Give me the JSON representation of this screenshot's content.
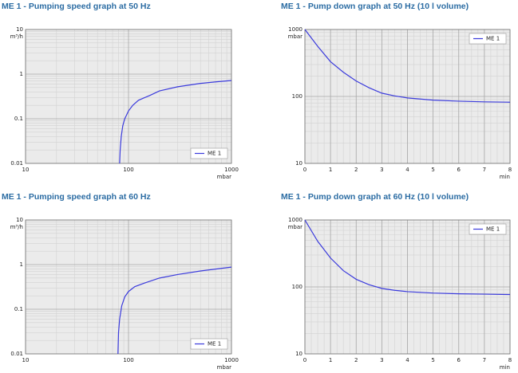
{
  "chart_data": [
    {
      "type": "line",
      "title": "ME 1 - Pumping speed graph at 50 Hz",
      "ylabel": "m³/h",
      "xlabel": "mbar",
      "xlog": true,
      "ylog": true,
      "xlim": [
        10,
        1000
      ],
      "ylim": [
        0.01,
        10
      ],
      "xticks": [
        10,
        100,
        1000
      ],
      "yticks": [
        0.01,
        0.1,
        1,
        10
      ],
      "grid": true,
      "legend": "lower right",
      "x": [
        82,
        83,
        85,
        88,
        92,
        100,
        110,
        125,
        140,
        160,
        200,
        300,
        500,
        700,
        1000
      ],
      "series": [
        {
          "name": "ME 1",
          "color": "#3b3bdc",
          "values": [
            0.01,
            0.02,
            0.04,
            0.07,
            0.1,
            0.15,
            0.2,
            0.26,
            0.29,
            0.33,
            0.42,
            0.52,
            0.62,
            0.67,
            0.72
          ]
        }
      ]
    },
    {
      "type": "line",
      "title": "ME 1 - Pump down graph at 50 Hz (10 l volume)",
      "ylabel": "mbar",
      "xlabel": "min",
      "xlog": false,
      "ylog": true,
      "xlim": [
        0,
        8
      ],
      "ylim": [
        10,
        1000
      ],
      "xticks": [
        0,
        1,
        2,
        3,
        4,
        5,
        6,
        7,
        8
      ],
      "yticks": [
        10,
        100,
        1000
      ],
      "grid": true,
      "legend": "upper right",
      "x": [
        0,
        0.5,
        1,
        1.5,
        2,
        2.5,
        3,
        3.5,
        4,
        5,
        6,
        7,
        8
      ],
      "series": [
        {
          "name": "ME 1",
          "color": "#3b3bdc",
          "values": [
            1000,
            560,
            330,
            230,
            170,
            135,
            112,
            102,
            95,
            88,
            85,
            83,
            82
          ]
        }
      ]
    },
    {
      "type": "line",
      "title": "ME 1 - Pumping speed graph at 60 Hz",
      "ylabel": "m³/h",
      "xlabel": "mbar",
      "xlog": true,
      "ylog": true,
      "xlim": [
        10,
        1000
      ],
      "ylim": [
        0.01,
        10
      ],
      "xticks": [
        10,
        100,
        1000
      ],
      "yticks": [
        0.01,
        0.1,
        1,
        10
      ],
      "grid": true,
      "legend": "lower right",
      "x": [
        79,
        80,
        82,
        86,
        92,
        100,
        115,
        140,
        200,
        300,
        500,
        1000
      ],
      "series": [
        {
          "name": "ME 1",
          "color": "#3b3bdc",
          "values": [
            0.01,
            0.03,
            0.06,
            0.12,
            0.19,
            0.25,
            0.32,
            0.38,
            0.5,
            0.6,
            0.72,
            0.88
          ]
        }
      ]
    },
    {
      "type": "line",
      "title": "ME 1 - Pump down graph at 60 Hz (10 l volume)",
      "ylabel": "mbar",
      "xlabel": "min",
      "xlog": false,
      "ylog": true,
      "xlim": [
        0,
        8
      ],
      "ylim": [
        10,
        1000
      ],
      "xticks": [
        0,
        1,
        2,
        3,
        4,
        5,
        6,
        7,
        8
      ],
      "yticks": [
        10,
        100,
        1000
      ],
      "grid": true,
      "legend": "upper right",
      "x": [
        0,
        0.5,
        1,
        1.5,
        2,
        2.5,
        3,
        3.5,
        4,
        5,
        6,
        7,
        8
      ],
      "series": [
        {
          "name": "ME 1",
          "color": "#3b3bdc",
          "values": [
            1000,
            480,
            270,
            175,
            130,
            108,
            95,
            89,
            85,
            81,
            79,
            78,
            77
          ]
        }
      ]
    }
  ]
}
